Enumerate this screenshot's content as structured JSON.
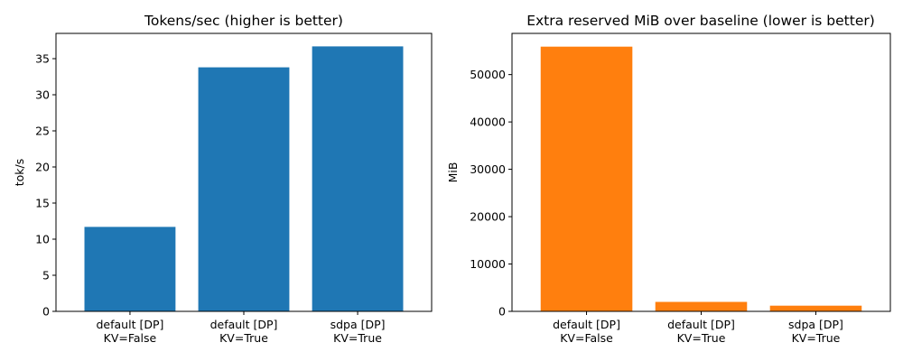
{
  "chart_data": [
    {
      "type": "bar",
      "title": "Tokens/sec (higher is better)",
      "xlabel": "",
      "ylabel": "tok/s",
      "categories": [
        [
          "default [DP]",
          "KV=False"
        ],
        [
          "default [DP]",
          "KV=True"
        ],
        [
          "sdpa [DP]",
          "KV=True"
        ]
      ],
      "values": [
        11.7,
        33.8,
        36.7
      ],
      "ylim": [
        0,
        38.5
      ],
      "yticks": [
        0,
        5,
        10,
        15,
        20,
        25,
        30,
        35
      ],
      "color": "#1f77b4",
      "grid": false,
      "legend": "none"
    },
    {
      "type": "bar",
      "title": "Extra reserved MiB over baseline (lower is better)",
      "xlabel": "",
      "ylabel": "MiB",
      "categories": [
        [
          "default [DP]",
          "KV=False"
        ],
        [
          "default [DP]",
          "KV=True"
        ],
        [
          "sdpa [DP]",
          "KV=True"
        ]
      ],
      "values": [
        55900,
        2000,
        1200
      ],
      "ylim": [
        0,
        58700
      ],
      "yticks": [
        0,
        10000,
        20000,
        30000,
        40000,
        50000
      ],
      "color": "#ff7f0e",
      "grid": false,
      "legend": "none"
    }
  ]
}
